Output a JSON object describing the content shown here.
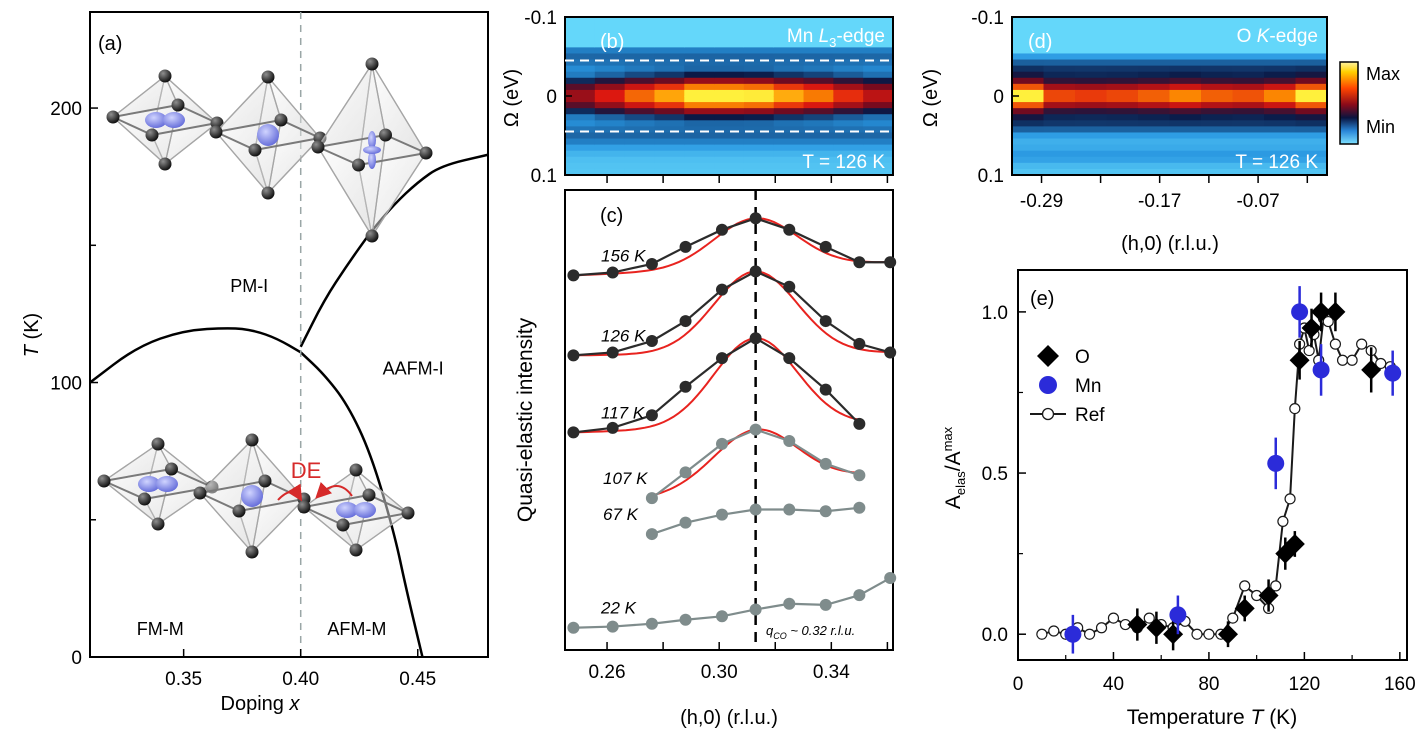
{
  "chart_data": [
    {
      "panel": "a",
      "type": "phase-diagram",
      "panel_label": "(a)",
      "xlabel": "Doping",
      "xlabel_var": "x",
      "ylabel_var": "T",
      "ylabel_unit": " (K)",
      "xlim": [
        0.31,
        0.48
      ],
      "ylim": [
        0,
        235
      ],
      "x_ticks": [
        0.35,
        0.4,
        0.45
      ],
      "x_tick_labels": [
        "0.35",
        "0.40",
        "0.45"
      ],
      "y_ticks": [
        0,
        100,
        200
      ],
      "y_tick_labels": [
        "0",
        "100",
        "200"
      ],
      "y_minor_ticks": [
        50,
        150
      ],
      "dashed_x": 0.4,
      "phase_labels": [
        {
          "text": "PM-I",
          "x": 0.378,
          "y": 133
        },
        {
          "text": "AAFM-I",
          "x": 0.448,
          "y": 103
        },
        {
          "text": "FM-M",
          "x": 0.34,
          "y": 8
        },
        {
          "text": "AFM-M",
          "x": 0.424,
          "y": 8
        }
      ],
      "boundary_curves": [
        {
          "name": "PM-FM",
          "points": [
            [
              0.31,
              100
            ],
            [
              0.33,
              113
            ],
            [
              0.35,
              119
            ],
            [
              0.37,
              120
            ],
            [
              0.38,
              119
            ],
            [
              0.39,
              116
            ],
            [
              0.4,
              111
            ]
          ]
        },
        {
          "name": "FM-AFM",
          "points": [
            [
              0.4,
              111
            ],
            [
              0.41,
              103
            ],
            [
              0.42,
              92
            ],
            [
              0.43,
              74
            ],
            [
              0.44,
              45
            ],
            [
              0.445,
              25
            ],
            [
              0.452,
              0
            ]
          ]
        },
        {
          "name": "PM-AAFM",
          "points": [
            [
              0.4,
              113
            ],
            [
              0.41,
              130
            ],
            [
              0.42,
              143
            ],
            [
              0.43,
              155
            ],
            [
              0.44,
              165
            ],
            [
              0.45,
              173
            ],
            [
              0.46,
              179
            ],
            [
              0.48,
              183
            ]
          ]
        }
      ],
      "annotation": "DE",
      "annotation_color": "#d62a2a"
    },
    {
      "panel": "b",
      "type": "heatmap",
      "panel_label": "(b)",
      "title_prefix": "Mn ",
      "title_italic": "L",
      "title_sub": "3",
      "title_suffix": "-edge",
      "temperature_label": "T = 126 K",
      "ylabel": "Ω (eV)",
      "y_tick_labels": [
        "-0.1",
        "0",
        "0.1"
      ],
      "y_ticks": [
        -0.1,
        0,
        0.1
      ],
      "dashed_y": [
        -0.045,
        0.045
      ],
      "columns": 11,
      "peak_intensity": [
        0.5,
        0.62,
        0.75,
        0.85,
        1.0,
        1.0,
        0.97,
        0.86,
        0.78,
        0.66,
        0.56
      ]
    },
    {
      "panel": "c",
      "type": "line",
      "panel_label": "(c)",
      "ylabel": "Quasi-elastic intensity",
      "xlabel": "(h,0) (r.l.u.)",
      "xlim": [
        0.245,
        0.362
      ],
      "x_ticks": [
        0.26,
        0.3,
        0.34
      ],
      "x_tick_labels": [
        "0.26",
        "0.30",
        "0.34"
      ],
      "dashed_x": 0.313,
      "qco_label": "q",
      "qco_sub": "CO",
      "qco_suffix": " ~ 0.32 r.l.u.",
      "series": [
        {
          "name": "156 K",
          "color": "#2b2b2b",
          "fit": true,
          "x": [
            0.248,
            0.262,
            0.276,
            0.288,
            0.301,
            0.313,
            0.325,
            0.338,
            0.35,
            0.361
          ],
          "y": [
            6.35,
            6.4,
            6.55,
            6.85,
            7.15,
            7.35,
            7.15,
            6.85,
            6.58,
            6.58
          ]
        },
        {
          "name": "126 K",
          "color": "#2b2b2b",
          "fit": true,
          "x": [
            0.248,
            0.262,
            0.276,
            0.288,
            0.301,
            0.313,
            0.325,
            0.338,
            0.35,
            0.361
          ],
          "y": [
            4.95,
            5.0,
            5.2,
            5.55,
            6.1,
            6.42,
            6.15,
            5.55,
            5.15,
            5.0
          ]
        },
        {
          "name": "117 K",
          "color": "#2b2b2b",
          "fit": true,
          "x": [
            0.248,
            0.262,
            0.276,
            0.288,
            0.301,
            0.313,
            0.325,
            0.338,
            0.35
          ],
          "y": [
            3.6,
            3.68,
            3.9,
            4.4,
            4.9,
            5.25,
            4.9,
            4.35,
            3.75
          ]
        },
        {
          "name": "107 K",
          "color": "#7f8c8c",
          "fit": true,
          "x": [
            0.276,
            0.288,
            0.301,
            0.313,
            0.325,
            0.338,
            0.35
          ],
          "y": [
            2.45,
            2.9,
            3.4,
            3.65,
            3.45,
            3.05,
            2.85
          ]
        },
        {
          "name": "67 K",
          "color": "#7f8c8c",
          "fit": false,
          "x": [
            0.276,
            0.288,
            0.301,
            0.313,
            0.325,
            0.338,
            0.35
          ],
          "y": [
            1.82,
            2.02,
            2.16,
            2.25,
            2.25,
            2.22,
            2.28
          ]
        },
        {
          "name": "22 K",
          "color": "#7f8c8c",
          "fit": false,
          "x": [
            0.248,
            0.262,
            0.276,
            0.288,
            0.301,
            0.313,
            0.325,
            0.338,
            0.35,
            0.361
          ],
          "y": [
            0.18,
            0.2,
            0.25,
            0.32,
            0.38,
            0.5,
            0.6,
            0.58,
            0.75,
            1.05
          ]
        }
      ]
    },
    {
      "panel": "d",
      "type": "heatmap",
      "panel_label": "(d)",
      "title_prefix": "O ",
      "title_italic": "K",
      "title_suffix": "-edge",
      "temperature_label": "T = 126 K",
      "ylabel": "Ω (eV)",
      "xlabel": "(h,0) (r.l.u.)",
      "y_tick_labels": [
        "-0.1",
        "0",
        "0.1"
      ],
      "y_ticks": [
        -0.1,
        0,
        0.1
      ],
      "x_ticks": [
        -0.29,
        -0.17,
        -0.07
      ],
      "x_tick_labels": [
        "-0.29",
        "-0.17",
        "-0.07"
      ],
      "xlim": [
        -0.32,
        0.0
      ],
      "columns": 10,
      "peak_intensity": [
        1.0,
        0.7,
        0.68,
        0.7,
        0.74,
        0.8,
        0.74,
        0.72,
        0.8,
        1.0
      ],
      "colorbar": {
        "max_label": "Max",
        "min_label": "Min"
      }
    },
    {
      "panel": "e",
      "type": "scatter",
      "panel_label": "(e)",
      "xlabel": "Temperature",
      "xlabel_var": "T",
      "xlabel_unit": " (K)",
      "ylabel_main": "A",
      "ylabel_sub": "elas",
      "ylabel_sep": "/A",
      "ylabel_sup": "max",
      "xlim": [
        0,
        163
      ],
      "ylim": [
        -0.08,
        1.13
      ],
      "x_ticks": [
        0,
        40,
        80,
        120,
        160
      ],
      "x_tick_labels": [
        "0",
        "40",
        "80",
        "120",
        "160"
      ],
      "y_ticks": [
        0.0,
        0.5,
        1.0
      ],
      "y_tick_labels": [
        "0.0",
        "0.5",
        "1.0"
      ],
      "legend": [
        "O",
        "Mn",
        "Ref"
      ],
      "series": [
        {
          "name": "O",
          "marker": "diamond",
          "color": "#000000",
          "x": [
            50,
            58,
            65,
            88,
            95,
            105,
            112,
            116,
            118,
            123,
            127,
            133,
            148
          ],
          "y": [
            0.03,
            0.02,
            0.0,
            0.0,
            0.08,
            0.12,
            0.25,
            0.28,
            0.85,
            0.95,
            1.0,
            1.0,
            0.82
          ],
          "err": [
            0.05,
            0.05,
            0.05,
            0.04,
            0.04,
            0.05,
            0.05,
            0.04,
            0.06,
            0.06,
            0.06,
            0.06,
            0.07
          ]
        },
        {
          "name": "Mn",
          "marker": "circle",
          "color": "#2b2bd9",
          "x": [
            23,
            67,
            108,
            118,
            127,
            157
          ],
          "y": [
            0.0,
            0.06,
            0.53,
            1.0,
            0.82,
            0.81
          ],
          "err": [
            0.06,
            0.06,
            0.08,
            0.08,
            0.08,
            0.07
          ]
        },
        {
          "name": "Ref",
          "marker": "open-circle",
          "color": "#1a1a1a",
          "x": [
            10,
            15,
            20,
            25,
            30,
            35,
            40,
            45,
            50,
            55,
            60,
            65,
            70,
            75,
            80,
            85,
            90,
            95,
            100,
            105,
            108,
            111,
            114,
            116,
            118,
            120,
            122,
            124,
            126,
            128,
            130,
            133,
            136,
            140,
            144,
            148,
            152,
            156
          ],
          "y": [
            0.0,
            0.01,
            0.0,
            0.02,
            0.0,
            0.02,
            0.05,
            0.03,
            0.02,
            0.05,
            0.03,
            0.02,
            0.04,
            0.0,
            0.0,
            0.0,
            0.05,
            0.15,
            0.12,
            0.08,
            0.15,
            0.35,
            0.42,
            0.7,
            0.9,
            0.95,
            0.88,
            0.93,
            0.85,
            0.98,
            0.97,
            0.9,
            0.85,
            0.85,
            0.9,
            0.88,
            0.84,
            0.83
          ]
        }
      ]
    }
  ]
}
